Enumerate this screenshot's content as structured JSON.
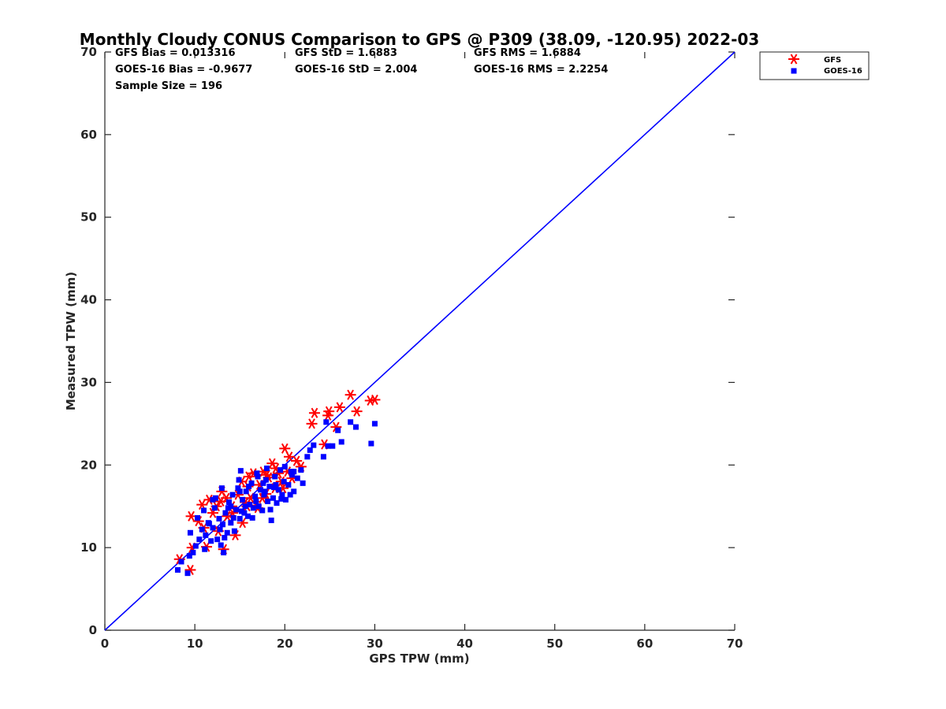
{
  "chart_data": {
    "type": "scatter",
    "title": "Monthly Cloudy CONUS Comparison to GPS @ P309 (38.09, -120.95) 2022-03",
    "xlabel": "GPS TPW (mm)",
    "ylabel": "Measured TPW (mm)",
    "xlim": [
      0,
      70
    ],
    "ylim": [
      0,
      70
    ],
    "xticks": [
      "0",
      "10",
      "20",
      "30",
      "40",
      "50",
      "60",
      "70"
    ],
    "yticks": [
      "0",
      "10",
      "20",
      "30",
      "40",
      "50",
      "60",
      "70"
    ],
    "grid": false,
    "legend_position": "top-right outside",
    "stats": {
      "gfs_bias": "GFS Bias = 0.013316",
      "gfs_std": "GFS StD = 1.6883",
      "gfs_rms": "GFS RMS = 1.6884",
      "goes_bias": "GOES-16 Bias = -0.9677",
      "goes_std": "GOES-16 StD = 2.004",
      "goes_rms": "GOES-16 RMS = 2.2254",
      "sample_size": "Sample Size = 196"
    },
    "reference_line": {
      "name": "1:1 line",
      "x": [
        0,
        70
      ],
      "y": [
        0,
        70
      ],
      "color": "#0000ff"
    },
    "series": [
      {
        "name": "GFS",
        "marker": "asterisk",
        "color": "#ff0000",
        "points": [
          [
            8.3,
            8.6
          ],
          [
            9.5,
            7.3
          ],
          [
            9.7,
            10.0
          ],
          [
            9.6,
            13.8
          ],
          [
            10.4,
            13.2
          ],
          [
            10.8,
            15.2
          ],
          [
            11.3,
            10.1
          ],
          [
            11.6,
            15.8
          ],
          [
            12.0,
            14.2
          ],
          [
            12.6,
            12.0
          ],
          [
            12.9,
            15.6
          ],
          [
            13.0,
            16.8
          ],
          [
            13.2,
            9.8
          ],
          [
            13.6,
            13.8
          ],
          [
            14.1,
            15.0
          ],
          [
            14.5,
            11.5
          ],
          [
            14.8,
            16.4
          ],
          [
            15.2,
            18.0
          ],
          [
            15.3,
            13.0
          ],
          [
            15.6,
            15.5
          ],
          [
            15.9,
            17.4
          ],
          [
            16.2,
            16.0
          ],
          [
            16.5,
            19.0
          ],
          [
            16.8,
            15.1
          ],
          [
            17.2,
            17.6
          ],
          [
            17.6,
            19.2
          ],
          [
            17.9,
            16.5
          ],
          [
            18.2,
            18.5
          ],
          [
            18.6,
            20.2
          ],
          [
            18.9,
            17.2
          ],
          [
            19.3,
            19.0
          ],
          [
            19.6,
            18.0
          ],
          [
            20.0,
            22.0
          ],
          [
            20.3,
            19.2
          ],
          [
            20.8,
            18.4
          ],
          [
            21.3,
            20.5
          ],
          [
            21.8,
            19.8
          ],
          [
            23.0,
            25.0
          ],
          [
            23.3,
            26.3
          ],
          [
            24.4,
            22.5
          ],
          [
            24.8,
            26.0
          ],
          [
            24.9,
            26.5
          ],
          [
            25.7,
            24.6
          ],
          [
            26.1,
            27.0
          ],
          [
            27.3,
            28.5
          ],
          [
            28.0,
            26.5
          ],
          [
            29.5,
            27.8
          ],
          [
            30.0,
            27.9
          ],
          [
            12.4,
            15.0
          ],
          [
            14.2,
            14.2
          ],
          [
            16.0,
            18.6
          ],
          [
            17.0,
            14.8
          ],
          [
            18.0,
            18.8
          ],
          [
            19.0,
            19.6
          ],
          [
            13.5,
            16.0
          ],
          [
            11.0,
            12.4
          ],
          [
            15.8,
            15.0
          ],
          [
            17.5,
            16.0
          ],
          [
            19.8,
            17.2
          ],
          [
            20.5,
            21.0
          ]
        ]
      },
      {
        "name": "GOES-16",
        "marker": "square",
        "color": "#0000ff",
        "points": [
          [
            8.1,
            7.3
          ],
          [
            8.5,
            8.3
          ],
          [
            9.2,
            6.9
          ],
          [
            9.4,
            9.0
          ],
          [
            9.5,
            11.8
          ],
          [
            9.8,
            9.4
          ],
          [
            10.1,
            10.2
          ],
          [
            10.5,
            11.0
          ],
          [
            10.8,
            12.2
          ],
          [
            11.0,
            14.5
          ],
          [
            11.2,
            11.5
          ],
          [
            11.5,
            13.0
          ],
          [
            11.8,
            10.8
          ],
          [
            12.0,
            12.4
          ],
          [
            12.2,
            14.8
          ],
          [
            12.5,
            11.0
          ],
          [
            12.7,
            13.5
          ],
          [
            12.9,
            10.3
          ],
          [
            13.1,
            12.8
          ],
          [
            13.2,
            9.4
          ],
          [
            13.4,
            14.2
          ],
          [
            13.6,
            11.8
          ],
          [
            13.8,
            15.5
          ],
          [
            14.0,
            13.0
          ],
          [
            14.2,
            16.4
          ],
          [
            14.4,
            12.0
          ],
          [
            14.6,
            14.6
          ],
          [
            14.8,
            17.2
          ],
          [
            15.0,
            13.5
          ],
          [
            15.1,
            19.3
          ],
          [
            15.3,
            15.8
          ],
          [
            15.5,
            14.2
          ],
          [
            15.7,
            16.8
          ],
          [
            15.9,
            13.8
          ],
          [
            16.1,
            15.2
          ],
          [
            16.3,
            17.8
          ],
          [
            16.5,
            14.8
          ],
          [
            16.7,
            16.2
          ],
          [
            16.9,
            19.0
          ],
          [
            17.1,
            15.0
          ],
          [
            17.3,
            17.0
          ],
          [
            17.5,
            14.5
          ],
          [
            17.7,
            16.4
          ],
          [
            17.9,
            18.2
          ],
          [
            18.1,
            15.6
          ],
          [
            18.3,
            17.4
          ],
          [
            18.5,
            13.3
          ],
          [
            18.7,
            16.0
          ],
          [
            18.9,
            18.6
          ],
          [
            19.1,
            15.4
          ],
          [
            19.3,
            17.0
          ],
          [
            19.5,
            19.4
          ],
          [
            19.7,
            16.4
          ],
          [
            19.9,
            18.0
          ],
          [
            20.1,
            15.8
          ],
          [
            20.4,
            17.6
          ],
          [
            20.7,
            19.2
          ],
          [
            21.0,
            16.8
          ],
          [
            21.4,
            18.4
          ],
          [
            22.0,
            17.8
          ],
          [
            22.5,
            21.0
          ],
          [
            22.8,
            21.8
          ],
          [
            23.2,
            22.4
          ],
          [
            24.3,
            21.0
          ],
          [
            24.6,
            25.2
          ],
          [
            24.8,
            22.3
          ],
          [
            25.3,
            22.3
          ],
          [
            25.9,
            24.2
          ],
          [
            26.3,
            22.8
          ],
          [
            27.3,
            25.2
          ],
          [
            27.9,
            24.6
          ],
          [
            29.6,
            22.6
          ],
          [
            30.0,
            25.0
          ],
          [
            12.3,
            16.0
          ],
          [
            13.0,
            17.2
          ],
          [
            14.0,
            15.0
          ],
          [
            15.0,
            16.8
          ],
          [
            16.0,
            17.4
          ],
          [
            17.0,
            18.6
          ],
          [
            18.0,
            19.6
          ],
          [
            19.0,
            17.6
          ],
          [
            20.0,
            19.8
          ],
          [
            21.0,
            19.2
          ],
          [
            11.6,
            12.9
          ],
          [
            12.8,
            12.2
          ],
          [
            14.3,
            13.6
          ],
          [
            15.6,
            15.0
          ],
          [
            16.8,
            15.6
          ],
          [
            17.8,
            16.8
          ],
          [
            18.8,
            17.3
          ],
          [
            19.6,
            15.9
          ],
          [
            20.6,
            16.4
          ],
          [
            11.1,
            9.8
          ],
          [
            13.3,
            11.2
          ],
          [
            15.2,
            14.4
          ],
          [
            16.4,
            13.6
          ],
          [
            10.3,
            13.6
          ],
          [
            12.0,
            15.8
          ],
          [
            13.7,
            14.8
          ],
          [
            14.9,
            18.2
          ],
          [
            17.6,
            17.8
          ],
          [
            18.4,
            14.6
          ],
          [
            20.8,
            18.8
          ],
          [
            21.8,
            19.4
          ]
        ]
      }
    ]
  }
}
